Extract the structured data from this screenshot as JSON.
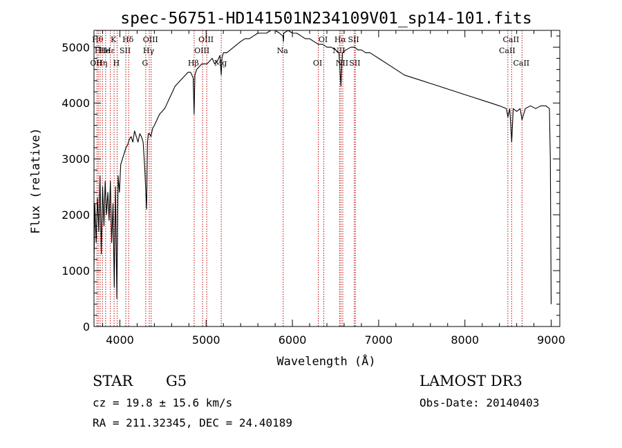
{
  "chart_data": {
    "type": "line",
    "title": "spec-56751-HD141501N234109V01_sp14-101.fits",
    "xlabel": "Wavelength (Å)",
    "ylabel": "Flux (relative)",
    "xlim": [
      3700,
      9100
    ],
    "ylim": [
      0,
      5300
    ],
    "xticks": [
      4000,
      5000,
      6000,
      7000,
      8000,
      9000
    ],
    "yticks": [
      0,
      1000,
      2000,
      3000,
      4000,
      5000
    ],
    "x_tick_labels": [
      "4000",
      "5000",
      "6000",
      "7000",
      "8000",
      "9000"
    ],
    "y_tick_labels": [
      "0",
      "1000",
      "2000",
      "3000",
      "4000",
      "5000"
    ],
    "series": [
      {
        "name": "flux",
        "x": [
          3700,
          3710,
          3725,
          3740,
          3755,
          3770,
          3785,
          3800,
          3815,
          3830,
          3845,
          3860,
          3875,
          3890,
          3905,
          3920,
          3935,
          3950,
          3965,
          3980,
          3995,
          4010,
          4030,
          4050,
          4070,
          4090,
          4110,
          4130,
          4150,
          4170,
          4190,
          4210,
          4230,
          4250,
          4270,
          4290,
          4310,
          4320,
          4330,
          4345,
          4360,
          4380,
          4400,
          4430,
          4460,
          4490,
          4520,
          4550,
          4580,
          4610,
          4640,
          4670,
          4700,
          4730,
          4760,
          4790,
          4820,
          4850,
          4861,
          4870,
          4890,
          4920,
          4950,
          4980,
          5010,
          5040,
          5070,
          5100,
          5130,
          5160,
          5175,
          5183,
          5200,
          5240,
          5280,
          5320,
          5360,
          5400,
          5450,
          5500,
          5550,
          5600,
          5650,
          5700,
          5750,
          5800,
          5850,
          5890,
          5896,
          5900,
          5950,
          6000,
          6050,
          6100,
          6150,
          6200,
          6250,
          6300,
          6350,
          6400,
          6450,
          6500,
          6540,
          6563,
          6580,
          6620,
          6680,
          6720,
          6760,
          6800,
          6850,
          6900,
          6950,
          7000,
          7100,
          7200,
          7300,
          7400,
          7500,
          7600,
          7700,
          7800,
          7900,
          8000,
          8100,
          8200,
          8300,
          8400,
          8480,
          8498,
          8520,
          8542,
          8560,
          8600,
          8640,
          8662,
          8700,
          8760,
          8820,
          8880,
          8940,
          8980,
          8990,
          9000
        ],
        "y": [
          1100,
          2200,
          1500,
          2300,
          1700,
          2700,
          1300,
          2500,
          1800,
          2600,
          2000,
          2400,
          1900,
          2600,
          1500,
          2200,
          700,
          2500,
          500,
          2700,
          2400,
          2900,
          3000,
          3100,
          3200,
          3250,
          3350,
          3400,
          3300,
          3500,
          3400,
          3300,
          3450,
          3400,
          3300,
          2800,
          2100,
          3300,
          3450,
          3450,
          3400,
          3550,
          3600,
          3700,
          3800,
          3850,
          3900,
          4000,
          4100,
          4200,
          4300,
          4350,
          4400,
          4450,
          4500,
          4550,
          4550,
          4450,
          3800,
          4500,
          4600,
          4650,
          4700,
          4700,
          4700,
          4750,
          4800,
          4700,
          4750,
          4850,
          4500,
          4800,
          4900,
          4900,
          4950,
          5000,
          5050,
          5100,
          5150,
          5150,
          5200,
          5250,
          5250,
          5250,
          5300,
          5300,
          5250,
          5200,
          5100,
          5250,
          5300,
          5250,
          5250,
          5200,
          5150,
          5150,
          5100,
          5050,
          5050,
          5000,
          5000,
          4950,
          4900,
          4300,
          4900,
          4950,
          5000,
          5000,
          4950,
          4950,
          4900,
          4900,
          4850,
          4800,
          4700,
          4600,
          4500,
          4450,
          4400,
          4350,
          4300,
          4250,
          4200,
          4150,
          4100,
          4050,
          4000,
          3950,
          3900,
          3750,
          3900,
          3300,
          3900,
          3850,
          3900,
          3700,
          3900,
          3950,
          3900,
          3950,
          3950,
          3900,
          3000,
          400
        ]
      }
    ],
    "line_markers": [
      {
        "x": 3750,
        "label": "Hθ",
        "row": 0
      },
      {
        "x": 3734,
        "label": "OII",
        "row": 2
      },
      {
        "x": 3771,
        "label": "HI",
        "row": 1
      },
      {
        "x": 3798,
        "label": "Hη",
        "row": 2
      },
      {
        "x": 3835,
        "label": "He",
        "row": 1
      },
      {
        "x": 3889,
        "label": "Hε",
        "row": 1
      },
      {
        "x": 3933,
        "label": "K",
        "row": 0
      },
      {
        "x": 3968,
        "label": "H",
        "row": 2
      },
      {
        "x": 4069,
        "label": "SII",
        "row": 1
      },
      {
        "x": 4102,
        "label": "Hδ",
        "row": 0
      },
      {
        "x": 4300,
        "label": "G",
        "row": 2
      },
      {
        "x": 4341,
        "label": "Hγ",
        "row": 1
      },
      {
        "x": 4363,
        "label": "OIII",
        "row": 0
      },
      {
        "x": 4861,
        "label": "Hβ",
        "row": 2
      },
      {
        "x": 4959,
        "label": "OIII",
        "row": 1
      },
      {
        "x": 5007,
        "label": "OIII",
        "row": 0
      },
      {
        "x": 5175,
        "label": "Mg",
        "row": 2
      },
      {
        "x": 5893,
        "label": "Na",
        "row": 1
      },
      {
        "x": 6300,
        "label": "OI",
        "row": 2
      },
      {
        "x": 6364,
        "label": "OI",
        "row": 0
      },
      {
        "x": 6548,
        "label": "NII",
        "row": 1
      },
      {
        "x": 6563,
        "label": "Hα",
        "row": 0
      },
      {
        "x": 6584,
        "label": "NII",
        "row": 2
      },
      {
        "x": 6717,
        "label": "SII",
        "row": 0
      },
      {
        "x": 6731,
        "label": "SII",
        "row": 2
      },
      {
        "x": 8498,
        "label": "CaII",
        "row": 1
      },
      {
        "x": 8542,
        "label": "CaII",
        "row": 0
      },
      {
        "x": 8662,
        "label": "CaII",
        "row": 2
      }
    ],
    "colors": {
      "line": "#000000",
      "marker": "#c00000",
      "axes": "#000000"
    }
  },
  "info": {
    "object_type": "STAR",
    "subclass": "G5",
    "survey": "LAMOST DR3",
    "cz": "cz = 19.8 ± 15.6 km/s",
    "obs_date": "Obs-Date: 20140403",
    "coords": "RA = 211.32345, DEC =  24.40189"
  }
}
